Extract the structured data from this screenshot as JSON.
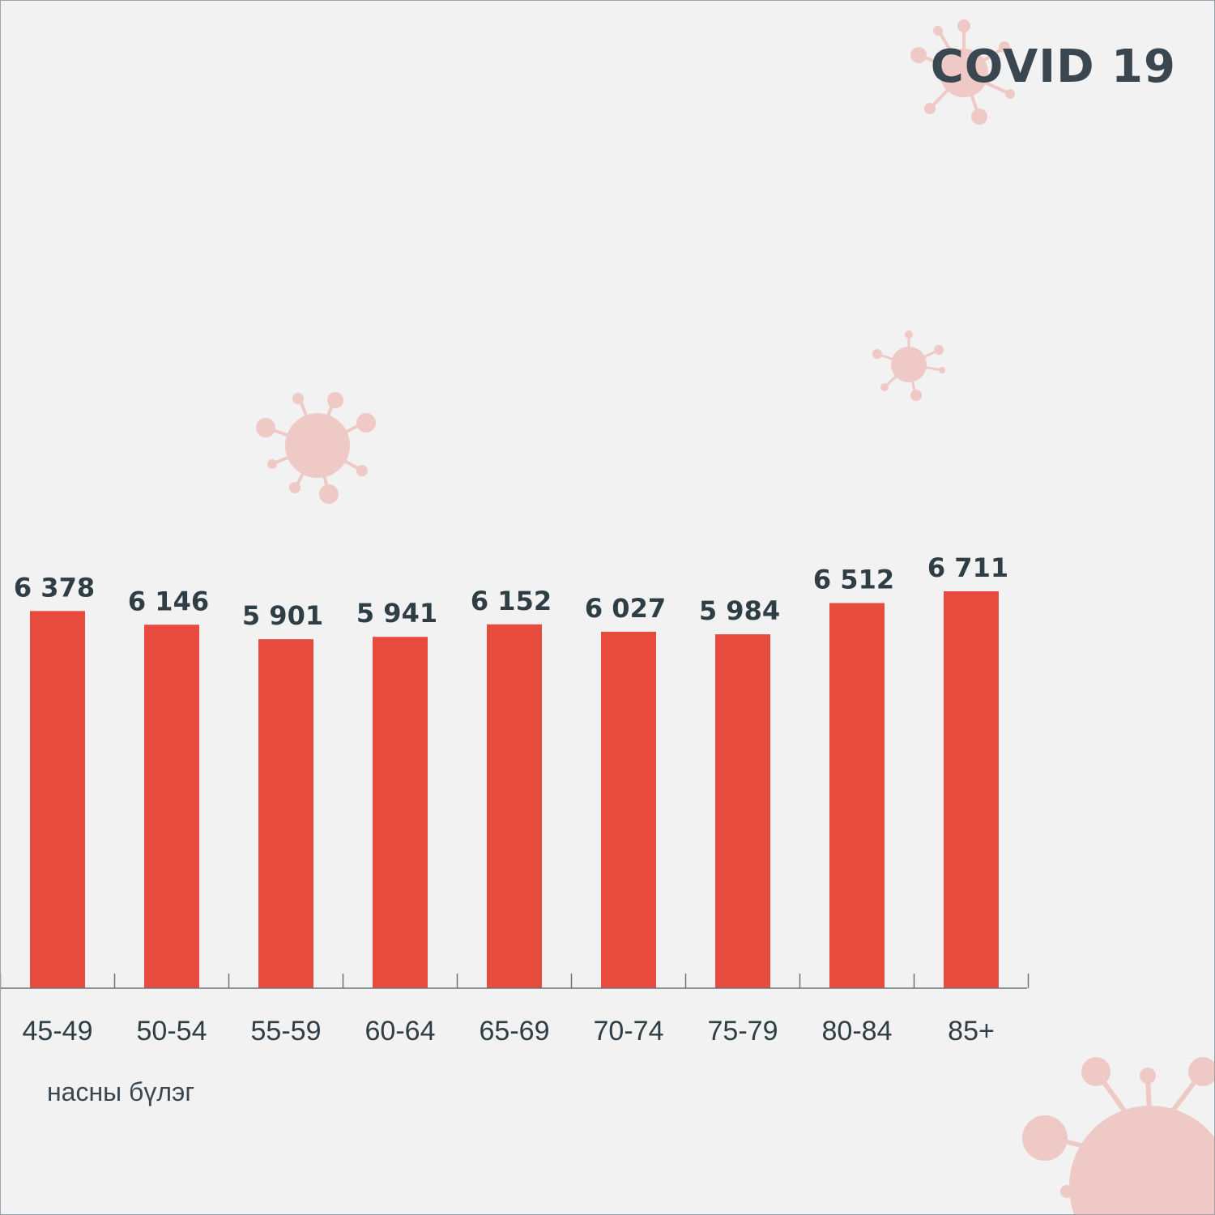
{
  "brand": "COVID 19",
  "colors": {
    "bar": "#e64b3e",
    "text": "#2f3d45",
    "axis": "#6b7378",
    "virus": "#efc9c6"
  },
  "chart_data": {
    "type": "bar",
    "categories": [
      "45-49",
      "50-54",
      "55-59",
      "60-64",
      "65-69",
      "70-74",
      "75-79",
      "80-84",
      "85+"
    ],
    "values": [
      6378,
      6146,
      5901,
      5941,
      6152,
      6027,
      5984,
      6512,
      6711
    ],
    "data_labels": [
      "6 378",
      "6 146",
      "5 901",
      "5 941",
      "6 152",
      "6 027",
      "5 984",
      "6 512",
      "6 711"
    ],
    "title": "",
    "xlabel": "насны бүлэг",
    "ylabel": "",
    "ylim": [
      0,
      6711
    ],
    "grid": false
  }
}
